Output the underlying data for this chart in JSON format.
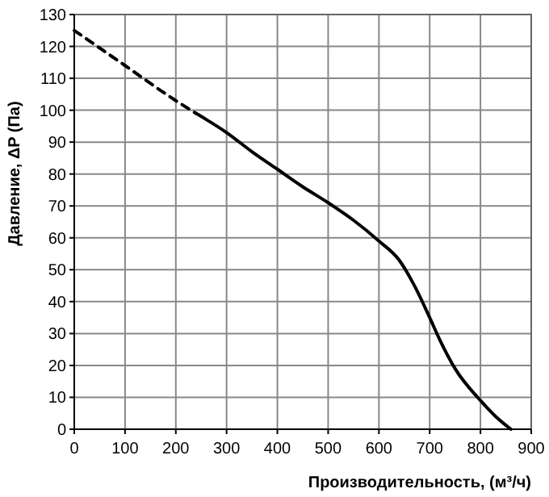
{
  "chart_data": {
    "type": "line",
    "xlabel": "Производительность, (м³/ч)",
    "ylabel": "Давление, ΔP (Па)",
    "xlim": [
      0,
      900
    ],
    "xticks": [
      0,
      100,
      200,
      300,
      400,
      500,
      600,
      700,
      800,
      900
    ],
    "ylim": [
      0,
      130
    ],
    "yticks": [
      0,
      10,
      20,
      30,
      40,
      50,
      60,
      70,
      80,
      90,
      100,
      110,
      120,
      130
    ],
    "grid": true,
    "marker": "none",
    "series": [
      {
        "color": "#000000",
        "line_style": "dashed",
        "x": [
          0,
          100,
          200,
          240
        ],
        "values": [
          125,
          114,
          103,
          99
        ]
      },
      {
        "color": "#000000",
        "line_style": "solid",
        "x": [
          240,
          300,
          350,
          400,
          450,
          500,
          550,
          600,
          640,
          670,
          700,
          720,
          750,
          800,
          830,
          860
        ],
        "values": [
          99,
          93,
          87,
          81.5,
          76,
          71,
          65.5,
          59,
          53,
          45,
          35,
          28,
          19,
          9,
          4,
          0
        ]
      }
    ]
  }
}
